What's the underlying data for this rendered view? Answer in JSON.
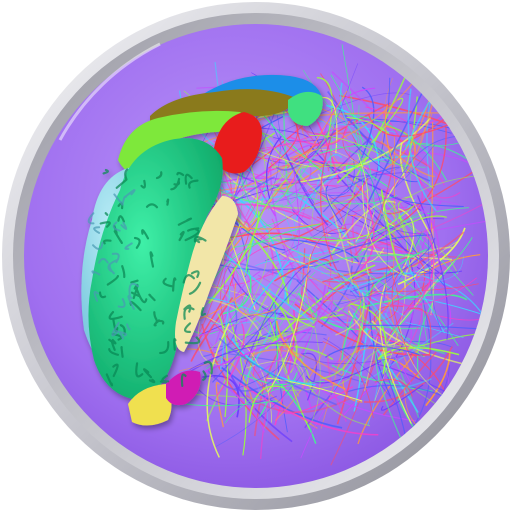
{
  "icon": {
    "subject": "brain-tractography-icon",
    "colors": {
      "ring_light": "#e8e8ec",
      "ring_mid": "#b9b9c2",
      "ring_dark": "#8c8c96",
      "disc_center": "#b58cf6",
      "disc_edge": "#8f5be8",
      "cortex_green": "#1fd08a",
      "cortex_green_dark": "#0e9a62",
      "cortex_light_blue": "#8fd8e8",
      "cortex_lime": "#7ee83a",
      "cortex_olive": "#8a7a1e",
      "cortex_blue": "#1e8ee8",
      "cortex_red": "#e81e1e",
      "cortex_yellow": "#f0e050",
      "cortex_magenta": "#d01eb4",
      "cortex_cream": "#f2e6a8",
      "fiber_colors": [
        "#4a5cff",
        "#6a3cff",
        "#ff4a6a",
        "#3cff8a",
        "#ff9a3c",
        "#3cd8ff",
        "#c84aff",
        "#9aff3c",
        "#ff3cc8",
        "#e6ff5a"
      ]
    }
  }
}
